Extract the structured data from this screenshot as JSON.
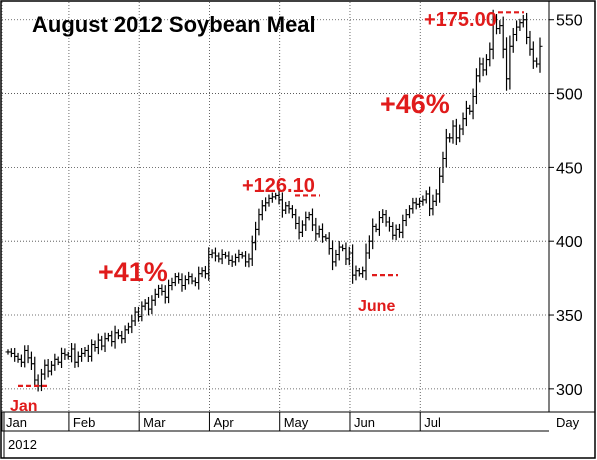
{
  "chart_data": {
    "type": "ohlc",
    "title": "August 2012 Soybean Meal",
    "xlabel": "Day",
    "year_label": "2012",
    "months": [
      "Jan",
      "Feb",
      "Mar",
      "Apr",
      "May",
      "Jun",
      "Jul"
    ],
    "y_ticks": [
      300,
      350,
      400,
      450,
      500,
      550
    ],
    "ylim": [
      285,
      562
    ],
    "grid": true,
    "annotations": [
      {
        "text": "+41%",
        "kind": "percent"
      },
      {
        "text": "+46%",
        "kind": "percent"
      },
      {
        "text": "+126.10",
        "kind": "gain",
        "at": 431
      },
      {
        "text": "+175.00",
        "kind": "gain",
        "at": 555
      },
      {
        "text": "Jan",
        "kind": "low",
        "at": 302
      },
      {
        "text": "June",
        "kind": "low",
        "at": 377
      }
    ],
    "closes": [
      325,
      324,
      322,
      320,
      318,
      326,
      321,
      317,
      306,
      302,
      310,
      316,
      312,
      316,
      320,
      318,
      324,
      323,
      322,
      327,
      318,
      322,
      324,
      326,
      322,
      330,
      328,
      333,
      329,
      334,
      336,
      332,
      338,
      336,
      334,
      340,
      342,
      346,
      352,
      349,
      356,
      358,
      354,
      360,
      364,
      368,
      366,
      362,
      370,
      372,
      376,
      374,
      370,
      374,
      376,
      373,
      372,
      378,
      380,
      378,
      391,
      392,
      390,
      388,
      391,
      390,
      387,
      386,
      389,
      391,
      390,
      386,
      388,
      399,
      408,
      418,
      424,
      426,
      429,
      430,
      431,
      428,
      421,
      424,
      422,
      418,
      412,
      406,
      411,
      416,
      418,
      411,
      405,
      408,
      403,
      402,
      395,
      386,
      391,
      396,
      395,
      388,
      392,
      377,
      380,
      378,
      380,
      392,
      400,
      410,
      408,
      416,
      418,
      413,
      410,
      404,
      408,
      406,
      414,
      418,
      422,
      426,
      425,
      427,
      428,
      432,
      422,
      427,
      432,
      444,
      456,
      470,
      470,
      478,
      470,
      476,
      483,
      490,
      488,
      498,
      512,
      520,
      516,
      523,
      530,
      550,
      544,
      546,
      530,
      510,
      532,
      540,
      545,
      548,
      550,
      538,
      530,
      522,
      520,
      532
    ]
  }
}
